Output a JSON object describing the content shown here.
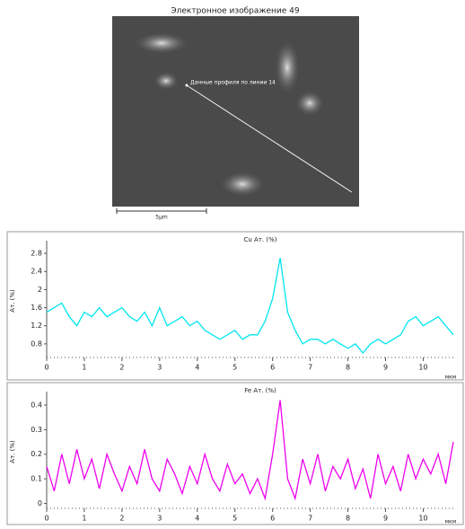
{
  "image": {
    "title": "Электронное изображение 49",
    "annotation": "Данные профиля по линии 14",
    "scale_label": "5µm"
  },
  "chart_data": [
    {
      "type": "line",
      "title": "Cu Ат. (%)",
      "ylabel": "Ат. (%)",
      "xlabel": "мкм",
      "color": "#00e5ee",
      "x": [
        0,
        0.2,
        0.4,
        0.6,
        0.8,
        1,
        1.2,
        1.4,
        1.6,
        1.8,
        2,
        2.2,
        2.4,
        2.6,
        2.8,
        3,
        3.2,
        3.4,
        3.6,
        3.8,
        4,
        4.2,
        4.4,
        4.6,
        4.8,
        5,
        5.2,
        5.4,
        5.6,
        5.8,
        6,
        6.2,
        6.4,
        6.6,
        6.8,
        7,
        7.2,
        7.4,
        7.6,
        7.8,
        8,
        8.2,
        8.4,
        8.6,
        8.8,
        9,
        9.2,
        9.4,
        9.6,
        9.8,
        10,
        10.2,
        10.4,
        10.6,
        10.8
      ],
      "values": [
        1.5,
        1.6,
        1.7,
        1.4,
        1.2,
        1.5,
        1.4,
        1.6,
        1.4,
        1.5,
        1.6,
        1.4,
        1.3,
        1.5,
        1.2,
        1.6,
        1.2,
        1.3,
        1.4,
        1.2,
        1.3,
        1.1,
        1.0,
        0.9,
        1.0,
        1.1,
        0.9,
        1.0,
        1.0,
        1.3,
        1.8,
        2.7,
        1.5,
        1.1,
        0.8,
        0.9,
        0.9,
        0.8,
        0.9,
        0.8,
        0.7,
        0.8,
        0.6,
        0.8,
        0.9,
        0.8,
        0.9,
        1.0,
        1.3,
        1.4,
        1.2,
        1.3,
        1.4,
        1.2,
        1.0
      ],
      "xlim": [
        0,
        10.8
      ],
      "ylim": [
        0.5,
        3.0
      ],
      "xticks": [
        0,
        1,
        2,
        3,
        4,
        5,
        6,
        7,
        8,
        9,
        10
      ],
      "yticks": [
        0.8,
        1.2,
        1.6,
        2,
        2.4,
        2.8
      ]
    },
    {
      "type": "line",
      "title": "Fe Ат. (%)",
      "ylabel": "Ат. (%)",
      "xlabel": "мкм",
      "color": "#ee00ee",
      "x": [
        0,
        0.2,
        0.4,
        0.6,
        0.8,
        1,
        1.2,
        1.4,
        1.6,
        1.8,
        2,
        2.2,
        2.4,
        2.6,
        2.8,
        3,
        3.2,
        3.4,
        3.6,
        3.8,
        4,
        4.2,
        4.4,
        4.6,
        4.8,
        5,
        5.2,
        5.4,
        5.6,
        5.8,
        6,
        6.2,
        6.4,
        6.6,
        6.8,
        7,
        7.2,
        7.4,
        7.6,
        7.8,
        8,
        8.2,
        8.4,
        8.6,
        8.8,
        9,
        9.2,
        9.4,
        9.6,
        9.8,
        10,
        10.2,
        10.4,
        10.6,
        10.8
      ],
      "values": [
        0.15,
        0.05,
        0.2,
        0.08,
        0.22,
        0.1,
        0.18,
        0.06,
        0.2,
        0.12,
        0.05,
        0.15,
        0.08,
        0.22,
        0.1,
        0.05,
        0.18,
        0.12,
        0.04,
        0.15,
        0.08,
        0.2,
        0.1,
        0.05,
        0.16,
        0.08,
        0.12,
        0.04,
        0.1,
        0.02,
        0.2,
        0.42,
        0.1,
        0.02,
        0.18,
        0.08,
        0.2,
        0.05,
        0.15,
        0.1,
        0.18,
        0.06,
        0.14,
        0.02,
        0.2,
        0.08,
        0.15,
        0.05,
        0.2,
        0.1,
        0.18,
        0.12,
        0.2,
        0.08,
        0.25
      ],
      "xlim": [
        0,
        10.8
      ],
      "ylim": [
        -0.02,
        0.44
      ],
      "xticks": [
        0,
        1,
        2,
        3,
        4,
        5,
        6,
        7,
        8,
        9,
        10
      ],
      "yticks": [
        0,
        0.1,
        0.2,
        0.3,
        0.4
      ]
    }
  ]
}
